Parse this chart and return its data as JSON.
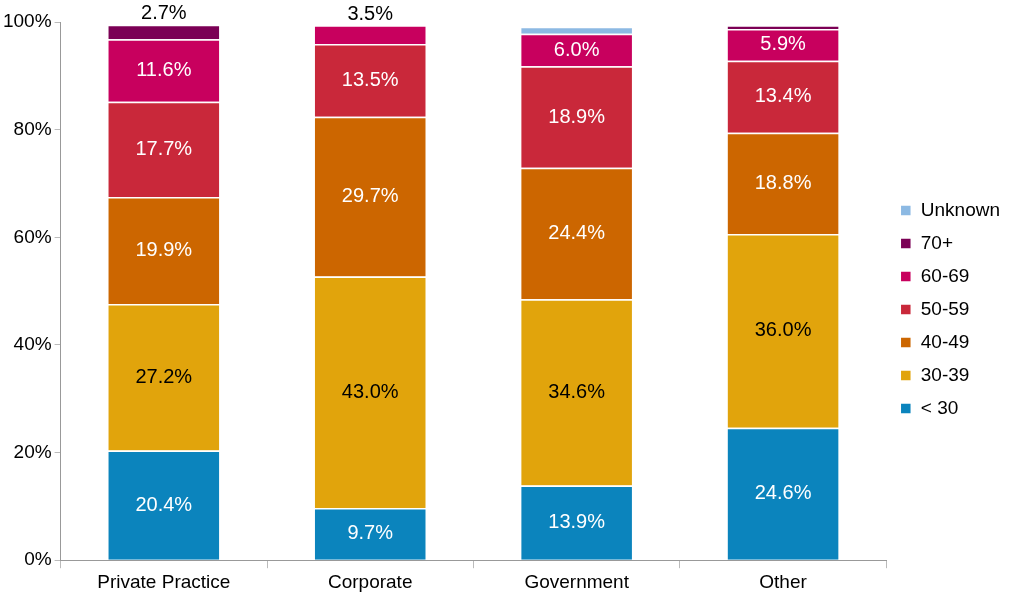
{
  "chart_data": {
    "type": "bar",
    "stacked": true,
    "categories": [
      "Private Practice",
      "Corporate",
      "Government",
      "Other"
    ],
    "series": [
      {
        "name": "< 30",
        "color": "#0b84bd",
        "values": [
          20.4,
          9.7,
          13.9,
          24.6
        ],
        "value_labels": [
          "20.4%",
          "9.7%",
          "13.9%",
          "24.6%"
        ]
      },
      {
        "name": "30-39",
        "color": "#e1a40c",
        "values": [
          27.2,
          43.0,
          34.6,
          36.0
        ],
        "value_labels": [
          "27.2%",
          "43.0%",
          "34.6%",
          "36.0%"
        ]
      },
      {
        "name": "40-49",
        "color": "#cc6600",
        "values": [
          19.9,
          29.7,
          24.4,
          18.8
        ],
        "value_labels": [
          "19.9%",
          "29.7%",
          "24.4%",
          "18.8%"
        ]
      },
      {
        "name": "50-59",
        "color": "#c9283a",
        "values": [
          17.7,
          13.5,
          18.9,
          13.4
        ],
        "value_labels": [
          "17.7%",
          "13.5%",
          "18.9%",
          "13.4%"
        ]
      },
      {
        "name": "60-69",
        "color": "#c8005e",
        "values": [
          11.6,
          3.5,
          6.0,
          5.9
        ],
        "value_labels": [
          "11.6%",
          "3.5%",
          "6.0%",
          "5.9%"
        ]
      },
      {
        "name": "70+",
        "color": "#7b0055",
        "values": [
          2.7,
          null,
          null,
          0.7
        ],
        "value_labels": [
          "2.7%",
          null,
          null,
          null
        ]
      },
      {
        "name": "Unknown",
        "color": "#8cb9e3",
        "values": [
          null,
          null,
          1.3,
          null
        ],
        "value_labels": [
          null,
          null,
          null,
          null
        ]
      }
    ],
    "ylim": [
      0,
      100
    ],
    "yticks": [
      {
        "value": 0,
        "label": "0%"
      },
      {
        "value": 20,
        "label": "20%"
      },
      {
        "value": 40,
        "label": "40%"
      },
      {
        "value": 60,
        "label": "60%"
      },
      {
        "value": 80,
        "label": "80%"
      },
      {
        "value": 100,
        "label": "100%"
      }
    ],
    "grid": false,
    "legend": "right"
  }
}
